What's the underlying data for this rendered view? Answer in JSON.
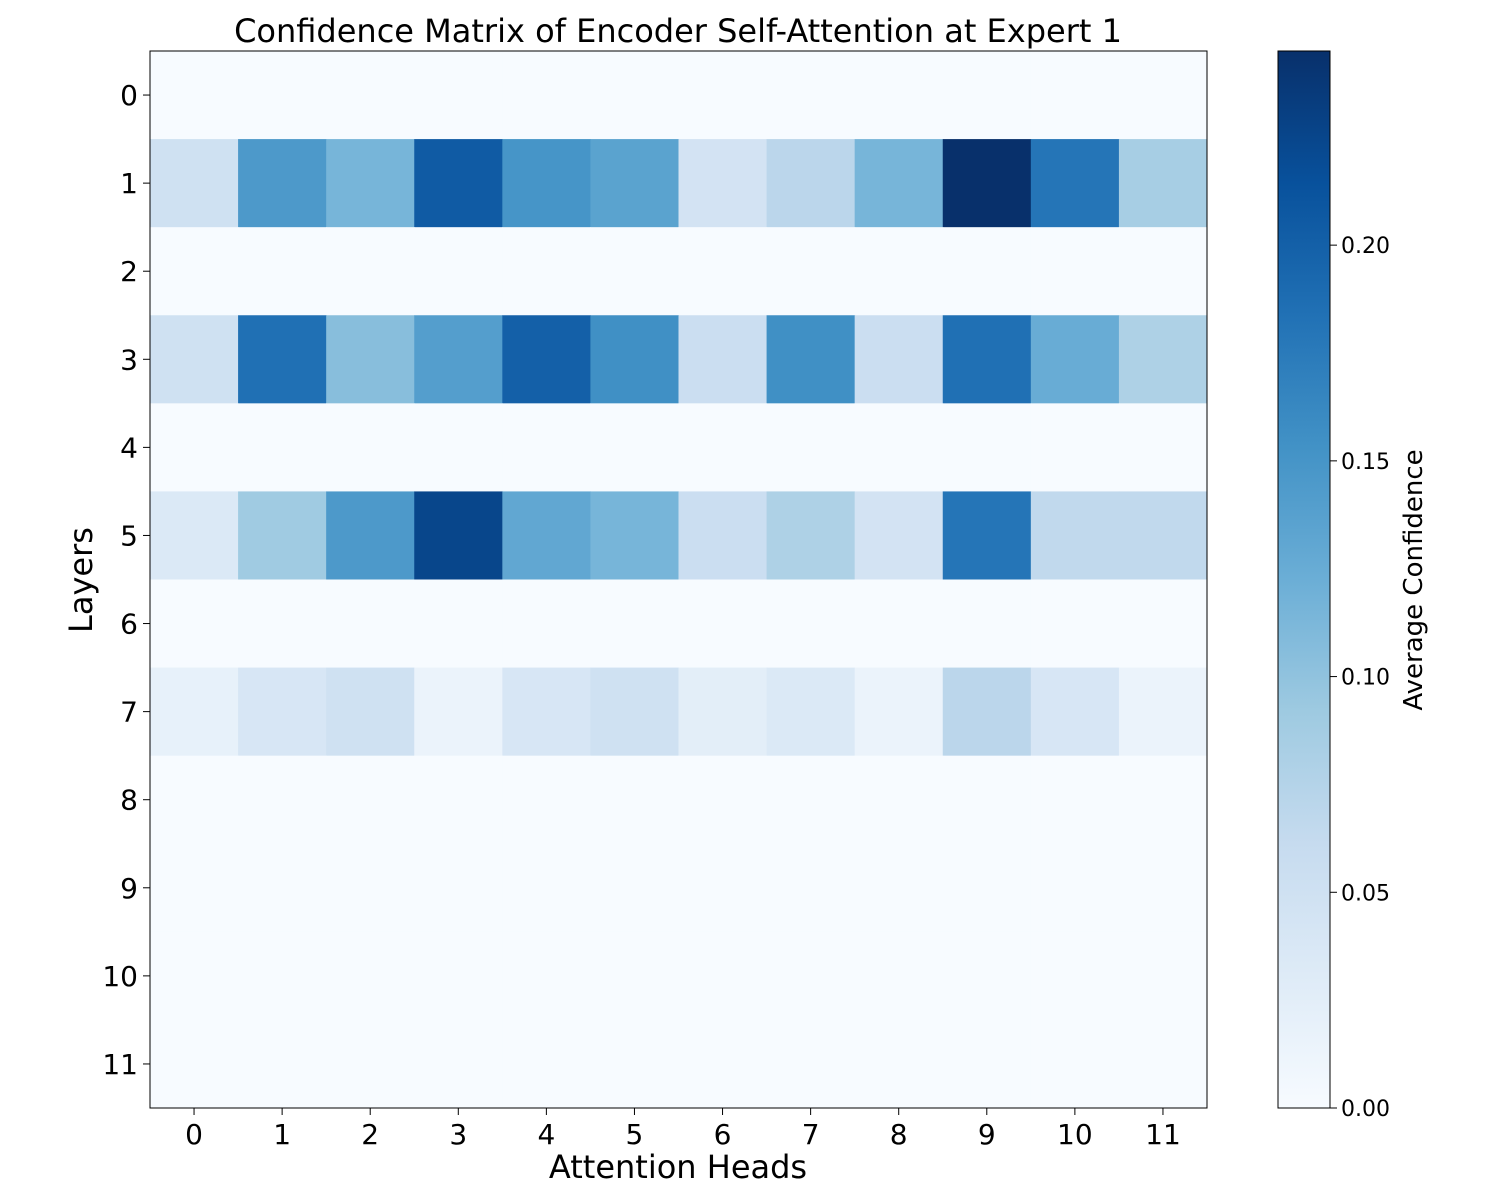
{
  "chart_data": {
    "type": "heatmap",
    "title": "Confidence Matrix of Encoder Self-Attention at Expert 1",
    "xlabel": "Attention Heads",
    "ylabel": "Layers",
    "x_categories": [
      "0",
      "1",
      "2",
      "3",
      "4",
      "5",
      "6",
      "7",
      "8",
      "9",
      "10",
      "11"
    ],
    "y_categories": [
      "0",
      "1",
      "2",
      "3",
      "4",
      "5",
      "6",
      "7",
      "8",
      "9",
      "10",
      "11"
    ],
    "values": [
      [
        0,
        0,
        0,
        0,
        0,
        0,
        0,
        0,
        0,
        0,
        0,
        0
      ],
      [
        0.05,
        0.145,
        0.115,
        0.205,
        0.15,
        0.135,
        0.045,
        0.07,
        0.115,
        0.245,
        0.18,
        0.085
      ],
      [
        0,
        0,
        0,
        0,
        0,
        0,
        0,
        0,
        0,
        0,
        0,
        0
      ],
      [
        0.05,
        0.185,
        0.105,
        0.14,
        0.2,
        0.155,
        0.055,
        0.155,
        0.055,
        0.185,
        0.125,
        0.08
      ],
      [
        0,
        0,
        0,
        0,
        0,
        0,
        0,
        0,
        0,
        0,
        0,
        0
      ],
      [
        0.035,
        0.09,
        0.145,
        0.225,
        0.13,
        0.115,
        0.055,
        0.08,
        0.045,
        0.18,
        0.065,
        0.065
      ],
      [
        0,
        0,
        0,
        0,
        0,
        0,
        0,
        0,
        0,
        0,
        0,
        0
      ],
      [
        0.02,
        0.04,
        0.05,
        0.015,
        0.04,
        0.05,
        0.025,
        0.035,
        0.015,
        0.07,
        0.04,
        0.015
      ],
      [
        0,
        0,
        0,
        0,
        0,
        0,
        0,
        0,
        0,
        0,
        0,
        0
      ],
      [
        0,
        0,
        0,
        0,
        0,
        0,
        0,
        0,
        0,
        0,
        0,
        0
      ],
      [
        0,
        0,
        0,
        0,
        0,
        0,
        0,
        0,
        0,
        0,
        0,
        0
      ],
      [
        0,
        0,
        0,
        0,
        0,
        0,
        0,
        0,
        0,
        0,
        0,
        0
      ]
    ],
    "colormap": "Blues",
    "colorbar": {
      "label": "Average Confidence",
      "min": 0.0,
      "max": 0.245,
      "ticks": [
        0.0,
        0.05,
        0.1,
        0.15,
        0.2
      ],
      "tick_labels": [
        "0.00",
        "0.05",
        "0.10",
        "0.15",
        "0.20"
      ]
    },
    "grid": false
  }
}
